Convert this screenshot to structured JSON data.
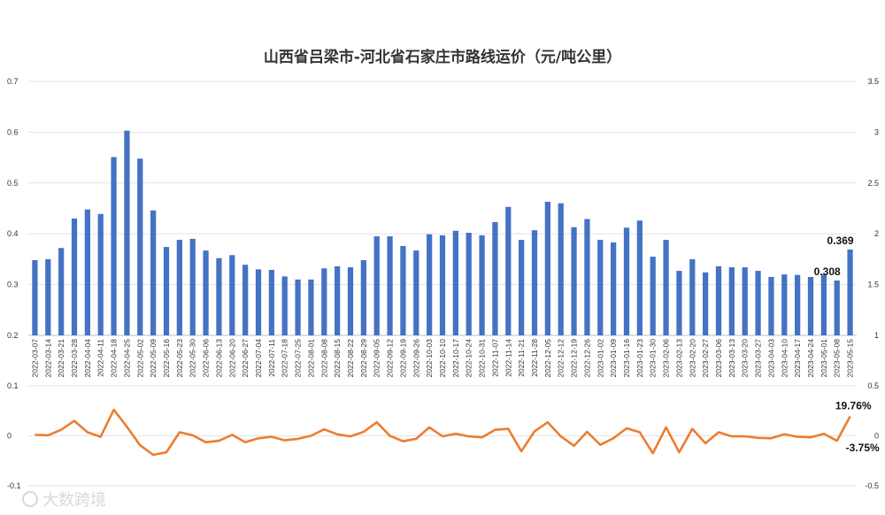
{
  "chart_data": [
    {
      "type": "bar",
      "title": "山西省吕梁市-河北省石家庄市路线运价（元/吨公里）",
      "left_axis": {
        "ylim": [
          0.2,
          0.7
        ],
        "ticks": [
          "0.2",
          "0.3",
          "0.4",
          "0.5",
          "0.6",
          "0.7"
        ]
      },
      "right_axis": {
        "ylim": [
          1,
          3.5
        ],
        "ticks": [
          "1",
          "1.5",
          "2",
          "2.5",
          "3",
          "3.5"
        ]
      },
      "grid": true,
      "bar_color": "#4472c4",
      "categories": [
        "2022-03-07",
        "2022-03-14",
        "2022-03-21",
        "2022-03-28",
        "2022-04-04",
        "2022-04-11",
        "2022-04-18",
        "2022-04-25",
        "2022-05-02",
        "2022-05-09",
        "2022-05-16",
        "2022-05-23",
        "2022-05-30",
        "2022-06-06",
        "2022-06-13",
        "2022-06-20",
        "2022-06-27",
        "2022-07-04",
        "2022-07-11",
        "2022-07-18",
        "2022-07-25",
        "2022-08-01",
        "2022-08-08",
        "2022-08-15",
        "2022-08-22",
        "2022-08-29",
        "2022-09-05",
        "2022-09-12",
        "2022-09-19",
        "2022-09-26",
        "2022-10-03",
        "2022-10-10",
        "2022-10-17",
        "2022-10-24",
        "2022-10-31",
        "2022-11-07",
        "2022-11-14",
        "2022-11-21",
        "2022-11-28",
        "2022-12-05",
        "2022-12-12",
        "2022-12-19",
        "2022-12-26",
        "2023-01-02",
        "2023-01-09",
        "2023-01-16",
        "2023-01-23",
        "2023-01-30",
        "2023-02-06",
        "2023-02-13",
        "2023-02-20",
        "2023-02-27",
        "2023-03-06",
        "2023-03-13",
        "2023-03-20",
        "2023-03-27",
        "2023-04-03",
        "2023-04-10",
        "2023-04-17",
        "2023-04-24",
        "2023-05-01",
        "2023-05-08",
        "2023-05-15"
      ],
      "values": [
        0.348,
        0.35,
        0.372,
        0.43,
        0.448,
        0.439,
        0.551,
        0.603,
        0.548,
        0.446,
        0.374,
        0.388,
        0.39,
        0.367,
        0.352,
        0.358,
        0.339,
        0.33,
        0.329,
        0.316,
        0.31,
        0.31,
        0.332,
        0.336,
        0.334,
        0.348,
        0.395,
        0.395,
        0.376,
        0.367,
        0.399,
        0.397,
        0.406,
        0.402,
        0.397,
        0.423,
        0.453,
        0.388,
        0.407,
        0.463,
        0.46,
        0.413,
        0.429,
        0.388,
        0.383,
        0.412,
        0.426,
        0.355,
        0.388,
        0.327,
        0.35,
        0.324,
        0.336,
        0.334,
        0.334,
        0.327,
        0.315,
        0.32,
        0.319,
        0.315,
        0.32,
        0.308,
        0.369
      ],
      "data_labels": [
        {
          "index": 61,
          "text": "0.308"
        },
        {
          "index": 62,
          "text": "0.369"
        }
      ]
    },
    {
      "type": "line",
      "axis": {
        "ylim": [
          -0.1,
          0.1
        ],
        "ticks": [
          "-0.1",
          "0",
          "0.1"
        ]
      },
      "right_axis": {
        "ylim": [
          -0.5,
          0.5
        ],
        "ticks": [
          "-0.5",
          "0",
          "0.5"
        ]
      },
      "line_color": "#ed7d31",
      "categories_ref": "shared with bar chart",
      "values": [
        0.002,
        0.001,
        0.012,
        0.03,
        0.007,
        -0.002,
        0.052,
        0.018,
        -0.019,
        -0.038,
        -0.033,
        0.007,
        0.001,
        -0.013,
        -0.01,
        0.002,
        -0.013,
        -0.005,
        -0.002,
        -0.009,
        -0.006,
        0.0,
        0.013,
        0.003,
        -0.001,
        0.008,
        0.027,
        0.0,
        -0.011,
        -0.006,
        0.017,
        -0.001,
        0.004,
        -0.001,
        -0.003,
        0.012,
        0.014,
        -0.031,
        0.009,
        0.027,
        -0.001,
        -0.02,
        0.008,
        -0.018,
        -0.005,
        0.015,
        0.007,
        -0.035,
        0.017,
        -0.033,
        0.014,
        -0.015,
        0.007,
        -0.001,
        -0.001,
        -0.004,
        -0.005,
        0.003,
        -0.002,
        -0.003,
        0.004,
        -0.01,
        0.039
      ],
      "data_labels": [
        {
          "index": 61,
          "text": "-3.75%"
        },
        {
          "index": 62,
          "text": "19.76%"
        }
      ]
    }
  ],
  "watermark": "大数跨境"
}
